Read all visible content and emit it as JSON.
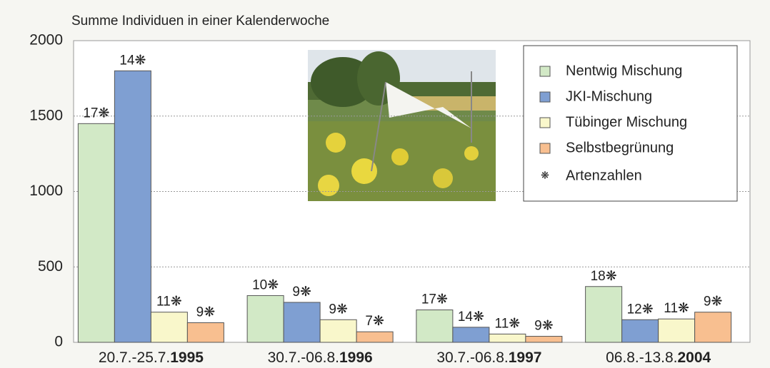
{
  "chart_data": {
    "type": "bar",
    "title": "Summe Individuen in einer Kalenderwoche",
    "categories": [
      {
        "range": "20.7.-25.7.",
        "year": "1995"
      },
      {
        "range": "30.7.-06.8.",
        "year": "1996"
      },
      {
        "range": "30.7.-06.8.",
        "year": "1997"
      },
      {
        "range": "06.8.-13.8.",
        "year": "2004"
      }
    ],
    "series": [
      {
        "name": "Nentwig Mischung",
        "color": "#d2e9c6",
        "values": [
          1450,
          310,
          215,
          370
        ],
        "species_labels": [
          "17❋",
          "10❋",
          "17❋",
          "18❋"
        ]
      },
      {
        "name": "JKI-Mischung",
        "color": "#7f9fd2",
        "values": [
          1800,
          265,
          100,
          150
        ],
        "species_labels": [
          "14❋",
          "9❋",
          "14❋",
          "12❋"
        ]
      },
      {
        "name": "Tübinger Mischung",
        "color": "#f9f7cb",
        "values": [
          200,
          150,
          55,
          155
        ],
        "species_labels": [
          "11❋",
          "9❋",
          "11❋",
          "11❋"
        ]
      },
      {
        "name": "Selbstbegrünung",
        "color": "#f8bf90",
        "values": [
          130,
          70,
          40,
          200
        ],
        "species_labels": [
          "9❋",
          "7❋",
          "9❋",
          "9❋"
        ]
      }
    ],
    "species_legend": {
      "symbol": "❋",
      "label": "Artenzahlen"
    },
    "ylim": [
      0,
      2000
    ],
    "yticks": [
      0,
      500,
      1000,
      1500,
      2000
    ],
    "grid": true
  }
}
